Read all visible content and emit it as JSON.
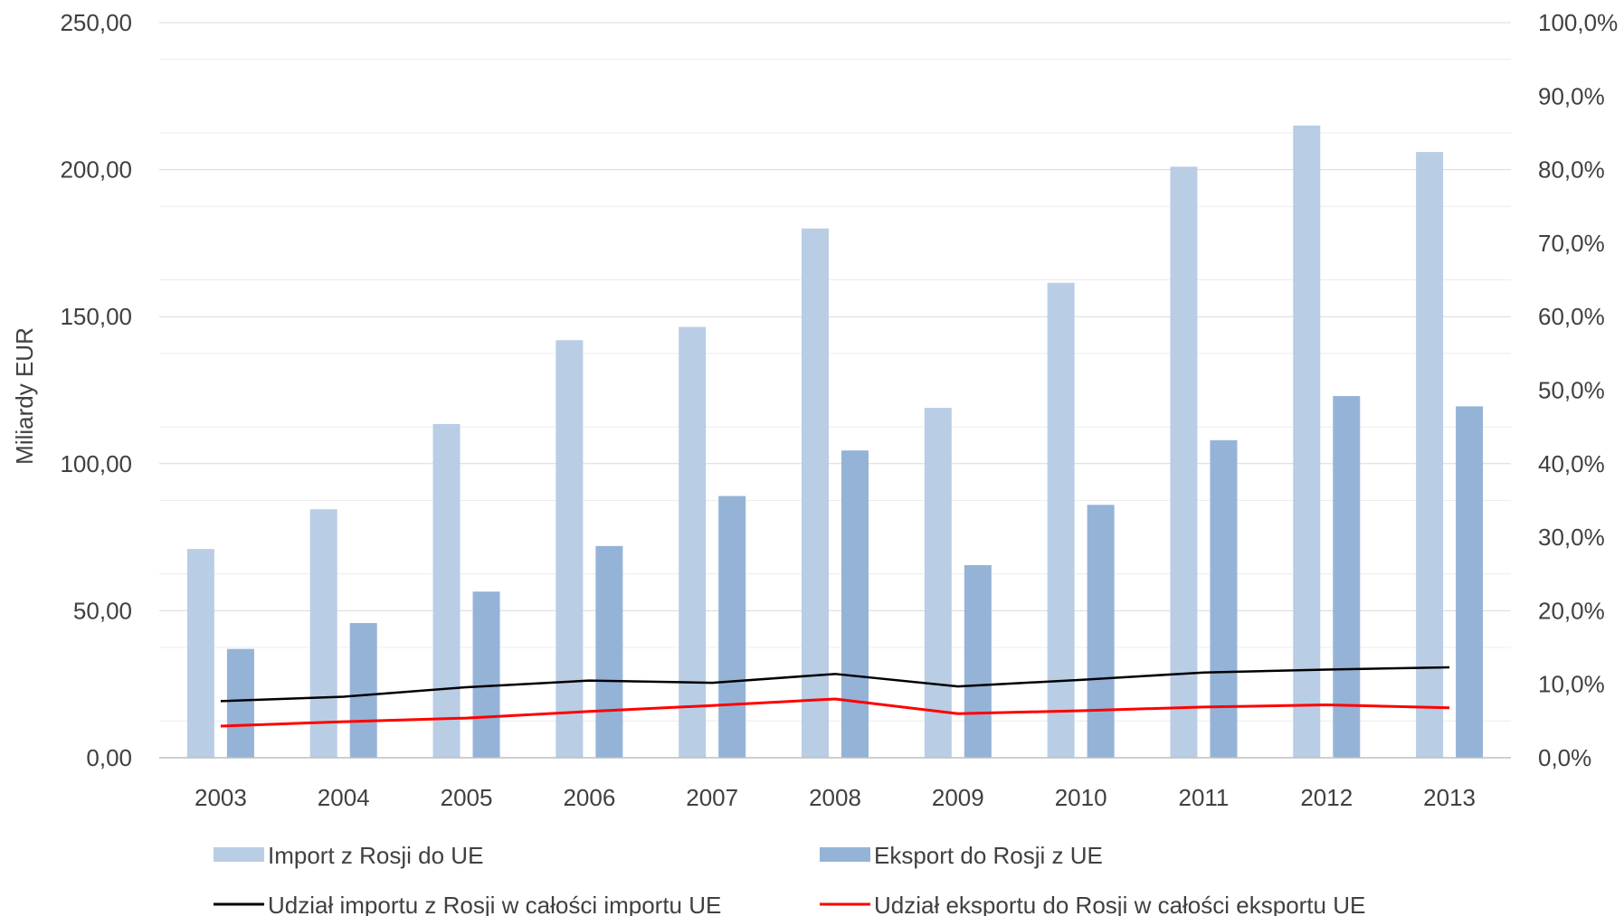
{
  "chart_data": {
    "type": "bar",
    "title": "",
    "ylabel": "Miliardy EUR",
    "ylim": [
      0,
      250
    ],
    "y2lim": [
      0,
      100
    ],
    "y_ticks": [
      "0,00",
      "50,00",
      "100,00",
      "150,00",
      "200,00",
      "250,00"
    ],
    "y2_ticks": [
      "0,0%",
      "10,0%",
      "20,0%",
      "30,0%",
      "40,0%",
      "50,0%",
      "60,0%",
      "70,0%",
      "80,0%",
      "90,0%",
      "100,0%"
    ],
    "grid": true,
    "legend_position": "bottom",
    "categories": [
      "2003",
      "2004",
      "2005",
      "2006",
      "2007",
      "2008",
      "2009",
      "2010",
      "2011",
      "2012",
      "2013"
    ],
    "series": [
      {
        "name": "Import z Rosji do UE",
        "kind": "bar",
        "axis": "left",
        "color": "#b9cde5",
        "values": [
          71.0,
          84.5,
          113.5,
          142.0,
          146.5,
          180.0,
          119.0,
          161.5,
          201.0,
          215.0,
          206.0
        ]
      },
      {
        "name": "Eksport do Rosji z UE",
        "kind": "bar",
        "axis": "left",
        "color": "#95b3d7",
        "values": [
          37.0,
          45.8,
          56.5,
          72.0,
          89.0,
          104.5,
          65.5,
          86.0,
          108.0,
          123.0,
          119.5
        ]
      },
      {
        "name": "Udział importu z Rosji w całości importu UE",
        "kind": "line",
        "axis": "right",
        "color": "#000000",
        "values": [
          7.7,
          8.3,
          9.6,
          10.5,
          10.2,
          11.4,
          9.7,
          10.6,
          11.6,
          12.0,
          12.3
        ]
      },
      {
        "name": "Udział eksportu do Rosji w całości eksportu UE",
        "kind": "line",
        "axis": "right",
        "color": "#ff0000",
        "values": [
          4.3,
          4.9,
          5.4,
          6.3,
          7.1,
          8.0,
          6.0,
          6.4,
          6.9,
          7.2,
          6.8
        ]
      }
    ]
  }
}
